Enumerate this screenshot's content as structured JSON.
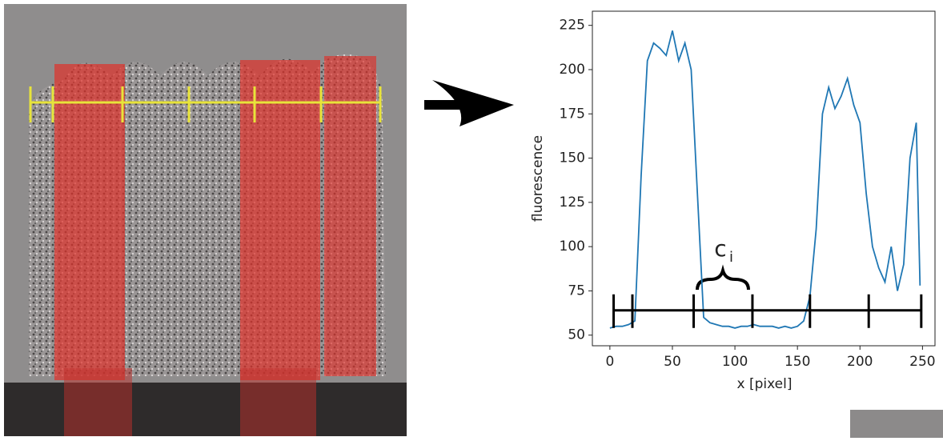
{
  "chart_data": {
    "type": "line",
    "xlabel": "x [pixel]",
    "ylabel": "fluorescence",
    "annotation": "c",
    "annotation_subscript": "i",
    "x": [
      0,
      5,
      10,
      15,
      20,
      25,
      30,
      35,
      40,
      45,
      50,
      55,
      60,
      65,
      70,
      75,
      80,
      85,
      90,
      95,
      100,
      105,
      110,
      115,
      120,
      125,
      130,
      135,
      140,
      145,
      150,
      155,
      160,
      165,
      170,
      175,
      180,
      185,
      190,
      195,
      200,
      205,
      210,
      215,
      220,
      225,
      230,
      235,
      240,
      245,
      248
    ],
    "values": [
      54,
      55,
      55,
      56,
      58,
      140,
      205,
      215,
      212,
      208,
      222,
      205,
      215,
      200,
      130,
      60,
      57,
      56,
      55,
      55,
      54,
      55,
      55,
      56,
      55,
      55,
      55,
      54,
      55,
      54,
      55,
      58,
      72,
      110,
      175,
      190,
      178,
      185,
      195,
      180,
      170,
      130,
      100,
      88,
      80,
      100,
      75,
      90,
      150,
      170,
      78
    ],
    "color": "#1f77b4",
    "xlim": [
      -14,
      260
    ],
    "ylim": [
      44,
      233
    ],
    "xticks": [
      0,
      50,
      100,
      150,
      200,
      250
    ],
    "yticks": [
      50,
      75,
      100,
      125,
      150,
      175,
      200,
      225
    ],
    "segment_level": 64,
    "segment_marks": [
      3,
      18,
      67,
      114,
      160,
      207,
      249
    ]
  }
}
